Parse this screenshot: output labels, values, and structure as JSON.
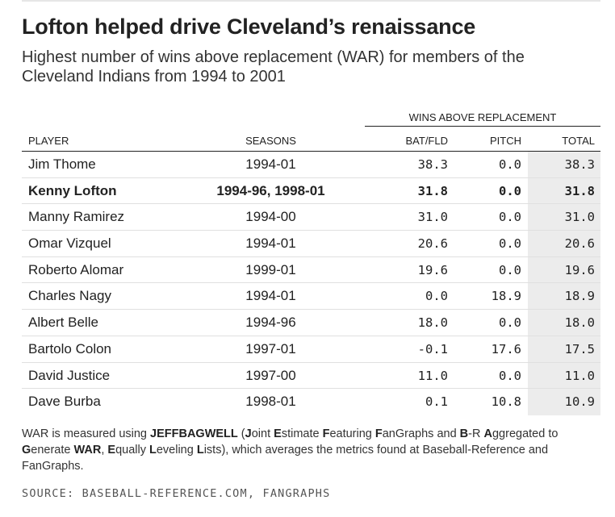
{
  "chart_data": {
    "type": "table",
    "title": "Lofton helped drive Cleveland’s renaissance",
    "subtitle": "Highest number of wins above replacement (WAR) for members of the Cleveland Indians from 1994 to 2001",
    "group_header": "WINS ABOVE REPLACEMENT",
    "columns": [
      "PLAYER",
      "SEASONS",
      "BAT/FLD",
      "PITCH",
      "TOTAL"
    ],
    "rows": [
      {
        "player": "Jim Thome",
        "seasons": "1994-01",
        "bat_fld": "38.3",
        "pitch": "0.0",
        "total": "38.3",
        "highlight": false
      },
      {
        "player": "Kenny Lofton",
        "seasons": "1994-96, 1998-01",
        "bat_fld": "31.8",
        "pitch": "0.0",
        "total": "31.8",
        "highlight": true
      },
      {
        "player": "Manny Ramirez",
        "seasons": "1994-00",
        "bat_fld": "31.0",
        "pitch": "0.0",
        "total": "31.0",
        "highlight": false
      },
      {
        "player": "Omar Vizquel",
        "seasons": "1994-01",
        "bat_fld": "20.6",
        "pitch": "0.0",
        "total": "20.6",
        "highlight": false
      },
      {
        "player": "Roberto Alomar",
        "seasons": "1999-01",
        "bat_fld": "19.6",
        "pitch": "0.0",
        "total": "19.6",
        "highlight": false
      },
      {
        "player": "Charles Nagy",
        "seasons": "1994-01",
        "bat_fld": "0.0",
        "pitch": "18.9",
        "total": "18.9",
        "highlight": false
      },
      {
        "player": "Albert Belle",
        "seasons": "1994-96",
        "bat_fld": "18.0",
        "pitch": "0.0",
        "total": "18.0",
        "highlight": false
      },
      {
        "player": "Bartolo Colon",
        "seasons": "1997-01",
        "bat_fld": "-0.1",
        "pitch": "17.6",
        "total": "17.5",
        "highlight": false
      },
      {
        "player": "David Justice",
        "seasons": "1997-00",
        "bat_fld": "11.0",
        "pitch": "0.0",
        "total": "11.0",
        "highlight": false
      },
      {
        "player": "Dave Burba",
        "seasons": "1998-01",
        "bat_fld": "0.1",
        "pitch": "10.8",
        "total": "10.9",
        "highlight": false
      }
    ],
    "footnote": [
      {
        "t": "WAR is measured using ",
        "b": false
      },
      {
        "t": "JEFFBAGWELL",
        "b": true
      },
      {
        "t": " (",
        "b": false
      },
      {
        "t": "J",
        "b": true
      },
      {
        "t": "oint ",
        "b": false
      },
      {
        "t": "E",
        "b": true
      },
      {
        "t": "stimate ",
        "b": false
      },
      {
        "t": "F",
        "b": true
      },
      {
        "t": "eaturing ",
        "b": false
      },
      {
        "t": "F",
        "b": true
      },
      {
        "t": "anGraphs and ",
        "b": false
      },
      {
        "t": "B",
        "b": true
      },
      {
        "t": "-R ",
        "b": false
      },
      {
        "t": "A",
        "b": true
      },
      {
        "t": "ggregated to ",
        "b": false
      },
      {
        "t": "G",
        "b": true
      },
      {
        "t": "enerate ",
        "b": false
      },
      {
        "t": "WAR",
        "b": true
      },
      {
        "t": ", ",
        "b": false
      },
      {
        "t": "E",
        "b": true
      },
      {
        "t": "qually ",
        "b": false
      },
      {
        "t": "L",
        "b": true
      },
      {
        "t": "eveling ",
        "b": false
      },
      {
        "t": "L",
        "b": true
      },
      {
        "t": "ists), which averages the metrics found at Baseball-Reference and FanGraphs.",
        "b": false
      }
    ],
    "source": "SOURCE: BASEBALL-REFERENCE.COM, FANGRAPHS"
  }
}
